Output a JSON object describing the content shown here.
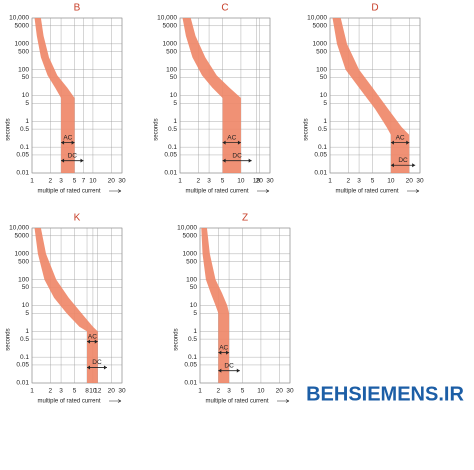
{
  "chart_data": [
    {
      "type": "band",
      "title": "B",
      "xlabel": "multiple of rated current",
      "ylabel": "seconds",
      "log_x": true,
      "log_y": true,
      "grid": true,
      "color": "#ee8566",
      "title_color": "#c8402a",
      "xlim": [
        1,
        30
      ],
      "xticks": [
        1,
        2,
        3,
        5,
        7,
        10,
        20,
        30
      ],
      "ylim": [
        0.01,
        10000
      ],
      "yticks": [
        0.01,
        0.05,
        0.1,
        0.5,
        1,
        5,
        10,
        50,
        100,
        500,
        1000,
        5000,
        {
          "value": 10000,
          "label": "10,000"
        }
      ],
      "band": {
        "y": [
          10000,
          2000,
          300,
          60,
          20,
          8,
          5,
          0.01
        ],
        "x_low": [
          1.1,
          1.2,
          1.4,
          1.8,
          2.4,
          3,
          3,
          3
        ],
        "x_high": [
          1.4,
          1.55,
          1.9,
          2.6,
          3.8,
          5,
          5,
          5
        ]
      },
      "annotations": [
        {
          "text": "AC",
          "x": [
            3,
            5
          ],
          "y": 0.15
        },
        {
          "text": "DC",
          "x": [
            3,
            7
          ],
          "y": 0.03
        }
      ]
    },
    {
      "type": "band",
      "title": "C",
      "xlabel": "multiple of rated current",
      "ylabel": "seconds",
      "log_x": true,
      "log_y": true,
      "grid": true,
      "color": "#ee8566",
      "title_color": "#c8402a",
      "xlim": [
        1,
        30
      ],
      "xticks": [
        1,
        2,
        3,
        5,
        10,
        18,
        20,
        30
      ],
      "ylim": [
        0.01,
        10000
      ],
      "yticks": [
        0.01,
        0.05,
        0.1,
        0.5,
        1,
        5,
        10,
        50,
        100,
        500,
        1000,
        5000,
        {
          "value": 10000,
          "label": "10,000"
        }
      ],
      "band": {
        "y": [
          10000,
          2000,
          300,
          60,
          20,
          8,
          5,
          0.01
        ],
        "x_low": [
          1.1,
          1.25,
          1.6,
          2.3,
          3.4,
          5,
          5,
          5
        ],
        "x_high": [
          1.5,
          1.8,
          2.6,
          4,
          6.5,
          10,
          10,
          10
        ]
      },
      "annotations": [
        {
          "text": "AC",
          "x": [
            5,
            10
          ],
          "y": 0.15
        },
        {
          "text": "DC",
          "x": [
            5,
            15
          ],
          "y": 0.03
        }
      ]
    },
    {
      "type": "band",
      "title": "D",
      "xlabel": "multiple of rated current",
      "ylabel": "seconds",
      "log_x": true,
      "log_y": true,
      "grid": true,
      "color": "#ee8566",
      "title_color": "#c8402a",
      "xlim": [
        1,
        30
      ],
      "xticks": [
        1,
        2,
        3,
        5,
        10,
        20,
        30
      ],
      "ylim": [
        0.01,
        10000
      ],
      "yticks": [
        0.01,
        0.05,
        0.1,
        0.5,
        1,
        5,
        10,
        50,
        100,
        500,
        1000,
        5000,
        {
          "value": 10000,
          "label": "10,000"
        }
      ],
      "band": {
        "y": [
          10000,
          1000,
          100,
          20,
          3,
          0.6,
          0.3,
          0.01
        ],
        "x_low": [
          1.1,
          1.3,
          1.8,
          3,
          5.5,
          8.5,
          10,
          10
        ],
        "x_high": [
          1.5,
          1.9,
          3,
          5,
          9,
          15,
          20,
          20
        ]
      },
      "annotations": [
        {
          "text": "AC",
          "x": [
            10,
            20
          ],
          "y": 0.15
        },
        {
          "text": "DC",
          "x": [
            10,
            25
          ],
          "y": 0.02
        }
      ]
    },
    {
      "type": "band",
      "title": "K",
      "xlabel": "multiple of rated current",
      "ylabel": "seconds",
      "log_x": true,
      "log_y": true,
      "grid": true,
      "color": "#ee8566",
      "title_color": "#c8402a",
      "xlim": [
        1,
        30
      ],
      "xticks": [
        1,
        2,
        3,
        5,
        8,
        10,
        12,
        20,
        30
      ],
      "ylim": [
        0.01,
        10000
      ],
      "yticks": [
        0.01,
        0.05,
        0.1,
        0.5,
        1,
        5,
        10,
        50,
        100,
        500,
        1000,
        5000,
        {
          "value": 10000,
          "label": "10,000"
        }
      ],
      "band": {
        "y": [
          10000,
          1000,
          100,
          20,
          5,
          1.5,
          1,
          0.01
        ],
        "x_low": [
          1.1,
          1.25,
          1.6,
          2.3,
          3.7,
          6,
          8,
          8
        ],
        "x_high": [
          1.4,
          1.7,
          2.5,
          4,
          6.5,
          10,
          12,
          12
        ]
      },
      "annotations": [
        {
          "text": "AC",
          "x": [
            8,
            12
          ],
          "y": 0.4
        },
        {
          "text": "DC",
          "x": [
            8,
            17
          ],
          "y": 0.04
        }
      ]
    },
    {
      "type": "band",
      "title": "Z",
      "xlabel": "multiple of rated current",
      "ylabel": "seconds",
      "log_x": true,
      "log_y": true,
      "grid": true,
      "color": "#ee8566",
      "title_color": "#c8402a",
      "xlim": [
        1,
        30
      ],
      "xticks": [
        1,
        2,
        3,
        5,
        10,
        20,
        30
      ],
      "ylim": [
        0.01,
        10000
      ],
      "yticks": [
        0.01,
        0.05,
        0.1,
        0.5,
        1,
        5,
        10,
        50,
        100,
        500,
        1000,
        5000,
        {
          "value": 10000,
          "label": "10,000"
        }
      ],
      "band": {
        "y": [
          10000,
          1000,
          100,
          30,
          10,
          5,
          3,
          0.01
        ],
        "x_low": [
          1.05,
          1.1,
          1.25,
          1.5,
          1.8,
          2,
          2,
          2
        ],
        "x_high": [
          1.3,
          1.45,
          1.8,
          2.3,
          2.8,
          3,
          3,
          3
        ]
      },
      "annotations": [
        {
          "text": "AC",
          "x": [
            2,
            3
          ],
          "y": 0.15
        },
        {
          "text": "DC",
          "x": [
            2,
            4.5
          ],
          "y": 0.03
        }
      ]
    }
  ],
  "watermark": "BEHSIEMENS.IR"
}
